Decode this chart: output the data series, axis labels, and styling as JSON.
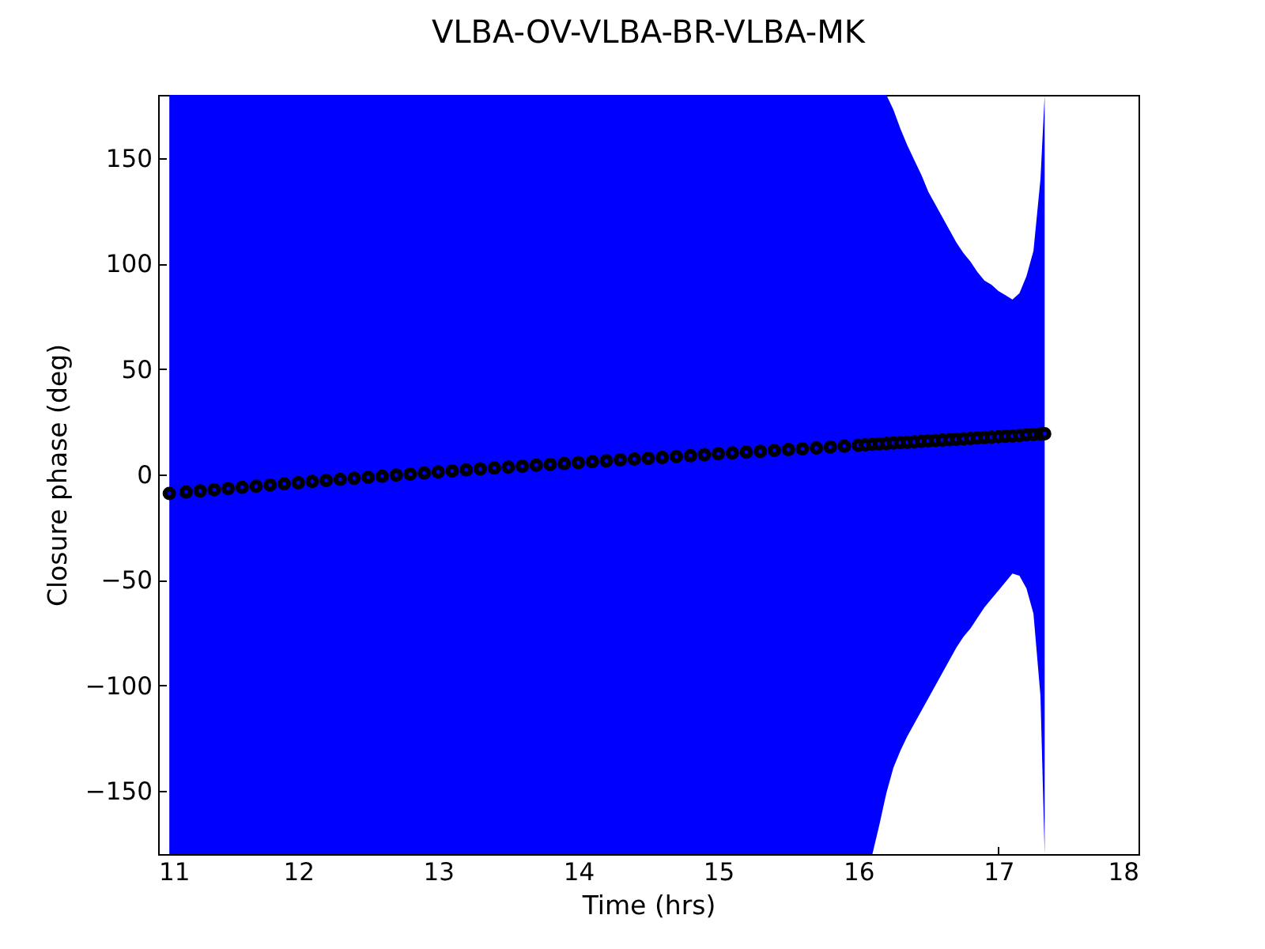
{
  "chart_data": {
    "type": "scatter",
    "title": "VLBA-OV-VLBA-BR-VLBA-MK",
    "xlabel": "Time (hrs)",
    "ylabel": "Closure phase (deg)",
    "x": [
      11.08,
      11.2,
      11.3,
      11.4,
      11.5,
      11.6,
      11.7,
      11.8,
      11.9,
      12.0,
      12.1,
      12.2,
      12.3,
      12.4,
      12.5,
      12.6,
      12.7,
      12.8,
      12.9,
      13.0,
      13.1,
      13.2,
      13.3,
      13.4,
      13.5,
      13.6,
      13.7,
      13.8,
      13.9,
      14.0,
      14.1,
      14.2,
      14.3,
      14.4,
      14.5,
      14.6,
      14.7,
      14.8,
      14.9,
      15.0,
      15.1,
      15.2,
      15.3,
      15.4,
      15.5,
      15.6,
      15.7,
      15.8,
      15.9,
      16.0,
      16.05,
      16.1,
      16.15,
      16.2,
      16.25,
      16.3,
      16.35,
      16.4,
      16.45,
      16.5,
      16.55,
      16.6,
      16.65,
      16.7,
      16.75,
      16.8,
      16.85,
      16.9,
      16.95,
      17.0,
      17.05,
      17.1,
      17.15,
      17.2,
      17.25,
      17.3,
      17.33
    ],
    "xlim": [
      11,
      18
    ],
    "xticks": [
      11,
      12,
      13,
      14,
      15,
      16,
      17,
      18
    ],
    "ylim": [
      -180,
      180
    ],
    "yticks": [
      -150,
      -100,
      -50,
      0,
      50,
      100,
      150
    ],
    "marker": "circle",
    "series": [
      {
        "color": "#0000ff",
        "values": [
          -9.0,
          -8.3,
          -7.8,
          -7.2,
          -6.7,
          -6.1,
          -5.5,
          -5.0,
          -4.4,
          -3.9,
          -3.3,
          -2.8,
          -2.3,
          -1.8,
          -1.3,
          -0.8,
          -0.3,
          0.2,
          0.7,
          1.2,
          1.7,
          2.2,
          2.6,
          3.1,
          3.5,
          3.9,
          4.4,
          4.8,
          5.2,
          5.6,
          6.1,
          6.5,
          6.9,
          7.3,
          7.7,
          8.1,
          8.5,
          8.9,
          9.4,
          9.8,
          10.2,
          10.6,
          11.0,
          11.4,
          11.8,
          12.2,
          12.6,
          13.0,
          13.4,
          13.9,
          14.1,
          14.3,
          14.5,
          14.7,
          14.9,
          15.1,
          15.3,
          15.5,
          15.7,
          15.9,
          16.1,
          16.3,
          16.5,
          16.7,
          16.9,
          17.1,
          17.3,
          17.5,
          17.7,
          17.9,
          18.1,
          18.3,
          18.5,
          18.8,
          19.0,
          19.2,
          19.3
        ],
        "lower": [
          -180,
          -180,
          -180,
          -180,
          -180,
          -180,
          -180,
          -180,
          -180,
          -180,
          -180,
          -180,
          -180,
          -180,
          -180,
          -180,
          -180,
          -180,
          -180,
          -180,
          -180,
          -180,
          -180,
          -180,
          -180,
          -180,
          -180,
          -180,
          -180,
          -180,
          -180,
          -180,
          -180,
          -180,
          -180,
          -180,
          -180,
          -180,
          -180,
          -180,
          -180,
          -180,
          -180,
          -180,
          -180,
          -180,
          -180,
          -180,
          -180,
          -180,
          -180,
          -180,
          -166,
          -151,
          -139,
          -131,
          -124,
          -118,
          -112,
          -106,
          -100,
          -94,
          -88,
          -82,
          -77,
          -73,
          -68,
          -63,
          -59,
          -55,
          -51,
          -47,
          -48,
          -54,
          -66,
          -105,
          -180
        ],
        "upper": [
          180,
          180,
          180,
          180,
          180,
          180,
          180,
          180,
          180,
          180,
          180,
          180,
          180,
          180,
          180,
          180,
          180,
          180,
          180,
          180,
          180,
          180,
          180,
          180,
          180,
          180,
          180,
          180,
          180,
          180,
          180,
          180,
          180,
          180,
          180,
          180,
          180,
          180,
          180,
          180,
          180,
          180,
          180,
          180,
          180,
          180,
          180,
          180,
          180,
          180,
          180,
          180,
          180,
          180,
          173,
          164,
          156,
          149,
          142,
          134,
          128,
          122,
          116,
          110,
          105,
          101,
          96,
          92,
          90,
          87,
          85,
          83,
          86,
          94,
          106,
          140,
          180
        ]
      }
    ]
  }
}
